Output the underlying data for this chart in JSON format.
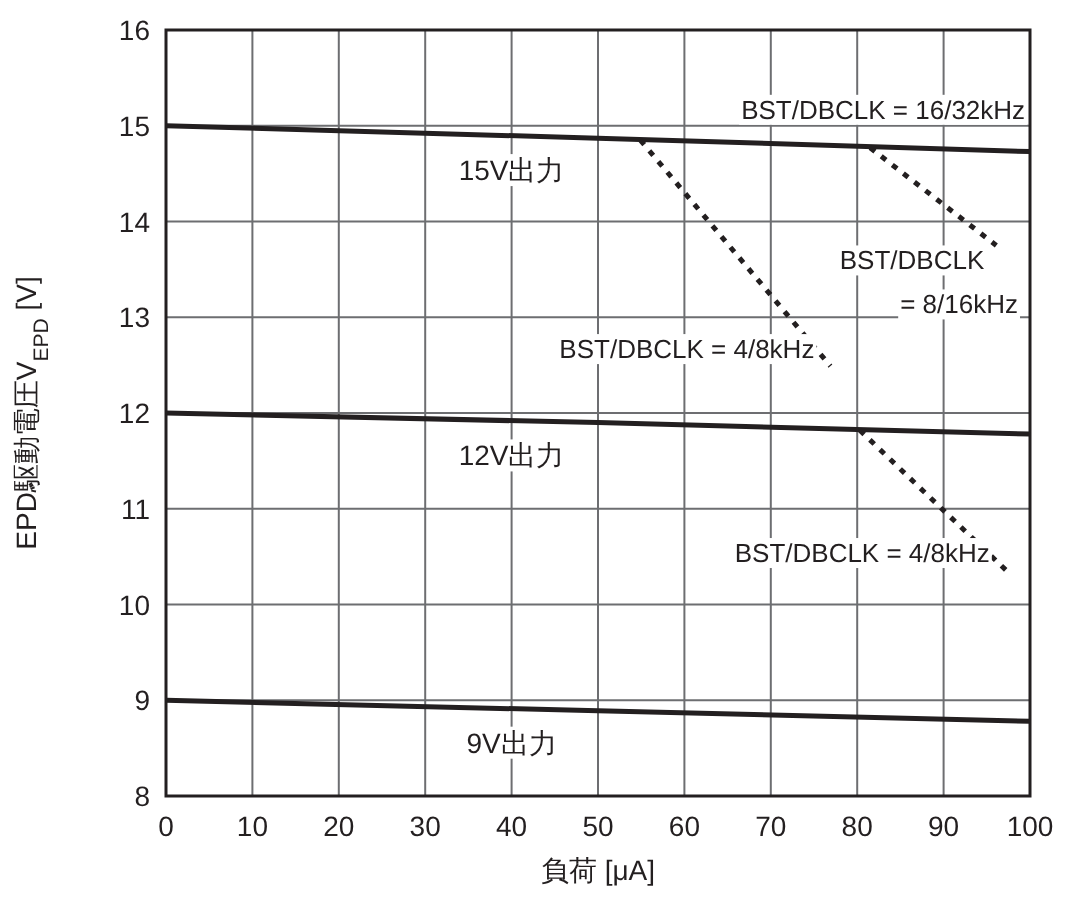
{
  "chart_data": {
    "type": "line",
    "xlabel": "負荷 [μA]",
    "ylabel": "EPD駆動電圧V$_{EPD}$ [V]",
    "xlim": [
      0,
      100
    ],
    "ylim": [
      8,
      16
    ],
    "xticks": [
      0,
      10,
      20,
      30,
      40,
      50,
      60,
      70,
      80,
      90,
      100
    ],
    "yticks": [
      8,
      9,
      10,
      11,
      12,
      13,
      14,
      15,
      16
    ],
    "grid": true,
    "line_style": "solid",
    "marker": "none",
    "series": [
      {
        "name": "15V出力",
        "color": "#231f20",
        "x": [
          0,
          50,
          100
        ],
        "values": [
          15.0,
          14.87,
          14.73
        ]
      },
      {
        "name": "12V出力",
        "color": "#231f20",
        "x": [
          0,
          50,
          100
        ],
        "values": [
          12.0,
          11.9,
          11.78
        ]
      },
      {
        "name": "9V出力",
        "color": "#231f20",
        "x": [
          0,
          50,
          100
        ],
        "values": [
          9.0,
          8.89,
          8.78
        ]
      },
      {
        "name": "BST/DBCLK = 4/8kHz",
        "color": "#231f20",
        "line_style": "dotted",
        "x": [
          54.9,
          76.9
        ],
        "values": [
          14.85,
          12.49
        ]
      },
      {
        "name": "BST/DBCLK = 8/16kHz",
        "color": "#231f20",
        "line_style": "dotted",
        "x": [
          81.5,
          96.1
        ],
        "values": [
          14.77,
          13.75
        ]
      },
      {
        "name": "BST/DBCLK = 4/8kHz",
        "color": "#231f20",
        "line_style": "dotted",
        "x": [
          80.3,
          97.2
        ],
        "values": [
          11.82,
          10.36
        ]
      }
    ],
    "annotations": [
      {
        "text": "BST/DBCLK = 16/32kHz",
        "x": 83,
        "y": 14.78
      }
    ]
  }
}
